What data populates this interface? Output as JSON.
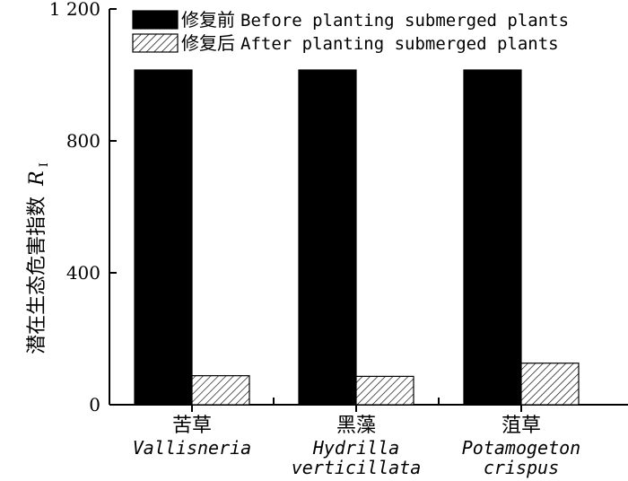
{
  "chart_data": {
    "type": "bar",
    "title": "",
    "ylabel": {
      "text": "潜在生态危害指数",
      "symbol": "R",
      "subscript": "I"
    },
    "xlabel": "",
    "ylim": [
      0,
      1200
    ],
    "yticks": [
      0,
      400,
      800,
      1200
    ],
    "ytick_labels": [
      "0",
      "400",
      "800",
      "1 200"
    ],
    "categories": [
      {
        "zh": "苦草",
        "en": [
          "Vallisneria"
        ]
      },
      {
        "zh": "黑藻",
        "en": [
          "Hydrilla",
          "verticillata"
        ]
      },
      {
        "zh": "菹草",
        "en": [
          "Potamogeton",
          "crispus"
        ]
      }
    ],
    "series": [
      {
        "name_zh": "修复前",
        "name_en": "Before planting submerged plants",
        "fill": "#000000",
        "pattern": "solid",
        "values": [
          1015,
          1015,
          1015
        ]
      },
      {
        "name_zh": "修复后",
        "name_en": "After  planting submerged plants",
        "fill": "#ffffff",
        "pattern": "hatch",
        "values": [
          88,
          86,
          126
        ]
      }
    ],
    "legend_position": "top",
    "grid": false
  }
}
